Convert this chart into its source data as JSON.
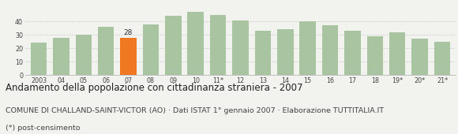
{
  "categories": [
    "2003",
    "04",
    "05",
    "06",
    "07",
    "08",
    "09",
    "10",
    "11*",
    "12",
    "13",
    "14",
    "15",
    "16",
    "17",
    "18",
    "19*",
    "20*",
    "21*"
  ],
  "values": [
    24,
    28,
    30,
    36,
    28,
    38,
    44,
    47,
    45,
    41,
    33,
    34,
    40,
    37,
    33,
    29,
    32,
    27,
    25
  ],
  "highlighted_index": 4,
  "highlight_color": "#f07820",
  "bar_color": "#a8c4a0",
  "highlight_label_value": "28",
  "ylim": [
    0,
    52
  ],
  "yticks": [
    0,
    10,
    20,
    30,
    40
  ],
  "background_color": "#f2f2ee",
  "grid_color": "#cccccc",
  "title_line1": "Andamento della popolazione con cittadinanza straniera - 2007",
  "title_line2": "COMUNE DI CHALLAND-SAINT-VICTOR (AO) · Dati ISTAT 1° gennaio 2007 · Elaborazione TUTTITALIA.IT",
  "title_line3": "(*) post-censimento",
  "title1_fontsize": 8.5,
  "title2_fontsize": 6.8,
  "title3_fontsize": 6.8,
  "tick_fontsize": 5.8,
  "label_fontsize": 6.5
}
